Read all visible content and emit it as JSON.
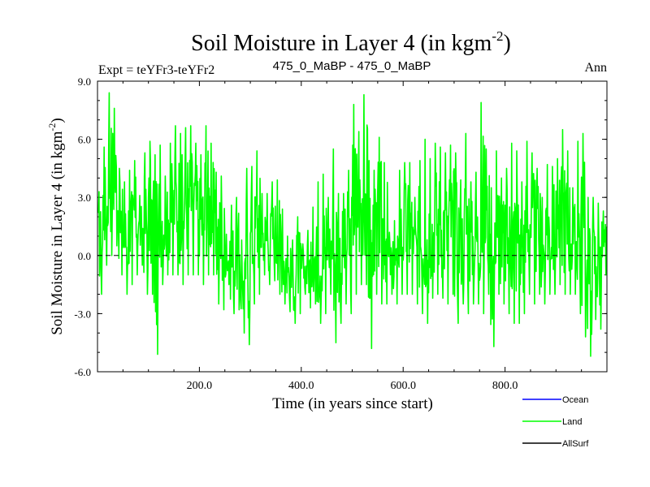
{
  "chart_data": {
    "type": "line",
    "title_main": "Soil Moisture in Layer 4 (in kgm",
    "title_sup": "-2",
    "title_close": ")",
    "subtitle_left": "Expt = teYFr3-teYFr2",
    "subtitle_center": "475_0_MaBP - 475_0_MaBP",
    "subtitle_right": "Ann",
    "xlabel": "Time (in years since start)",
    "ylabel_main": "Soil Moisture in Layer 4 (in kgm",
    "ylabel_sup": "-2",
    "ylabel_close": ")",
    "xlim": [
      0,
      1000
    ],
    "ylim": [
      -6.0,
      9.0
    ],
    "x_ticks": [
      200,
      400,
      600,
      800
    ],
    "x_tick_labels": [
      "200.0",
      "400.0",
      "600.0",
      "800.0"
    ],
    "y_ticks": [
      -6.0,
      -3.0,
      0.0,
      3.0,
      6.0,
      9.0
    ],
    "y_tick_labels": [
      "-6.0",
      "-3.0",
      "0.0",
      "3.0",
      "6.0",
      "9.0"
    ],
    "zero_line": 0.0,
    "legend": [
      {
        "name": "Ocean",
        "color": "#0000ff"
      },
      {
        "name": "Land",
        "color": "#00ff00"
      },
      {
        "name": "AllSurf",
        "color": "#000000"
      }
    ],
    "series": [
      {
        "name": "Land",
        "color": "#00ff00",
        "x_start": 1,
        "x_step": 10,
        "values_max": [
          3.3,
          5.6,
          8.4,
          7.6,
          4.5,
          3.8,
          4.4,
          4.9,
          3.1,
          5.3,
          5.9,
          5.2,
          5.7,
          4.1,
          5.8,
          6.7,
          6.3,
          6.6,
          6.7,
          5.8,
          5.2,
          6.7,
          5.8,
          4.3,
          4.1,
          1.1,
          2.6,
          3.0,
          0.8,
          4.5,
          4.6,
          5.4,
          3.2,
          3.2,
          3.8,
          3.9,
          2.4,
          1.0,
          0.8,
          2.0,
          0.6,
          1.3,
          2.5,
          3.8,
          4.2,
          3.0,
          5.5,
          3.2,
          3.2,
          4.4,
          7.8,
          6.4,
          8.3,
          4.9,
          4.4,
          6.1,
          4.8,
          1.2,
          1.8,
          4.4,
          4.8,
          4.8,
          3.0,
          4.9,
          6.0,
          5.0,
          5.8,
          5.6,
          5.3,
          5.7,
          5.3,
          3.9,
          6.3,
          3.8,
          4.3,
          7.9,
          5.5,
          3.5,
          5.4,
          4.0,
          4.5,
          5.8,
          5.4,
          3.8,
          5.9,
          5.3,
          4.5,
          3.0,
          4.7,
          4.6,
          5.0,
          6.5,
          5.4,
          3.5,
          5.9,
          6.3,
          3.0,
          3.0,
          2.7,
          2.3
        ],
        "values_min": [
          -2.0,
          -0.5,
          0.0,
          0.5,
          -1.0,
          -2.0,
          -1.5,
          -1.0,
          -0.5,
          -2.0,
          -2.0,
          -5.1,
          -1.5,
          -1.0,
          -1.0,
          -1.0,
          -1.5,
          -1.0,
          -1.0,
          -1.0,
          -1.5,
          -1.0,
          -1.0,
          -2.5,
          -2.8,
          -1.5,
          -3.0,
          -2.8,
          -4.0,
          -4.6,
          -2.5,
          -2.0,
          -1.0,
          -1.5,
          -1.3,
          -2.0,
          -2.5,
          -2.9,
          -3.5,
          -3.0,
          -2.0,
          -2.7,
          -2.5,
          -3.5,
          -3.0,
          -2.0,
          -4.5,
          -3.5,
          -2.5,
          -3.0,
          -2.0,
          -1.5,
          -1.5,
          -4.8,
          -2.0,
          -2.5,
          -2.5,
          -2.0,
          -2.5,
          -2.0,
          -2.0,
          -2.0,
          -2.5,
          -3.0,
          -3.5,
          -2.2,
          -2.0,
          -2.2,
          -2.5,
          -2.0,
          -3.5,
          -2.5,
          -3.0,
          -2.5,
          -2.5,
          -3.0,
          -2.0,
          -4.7,
          -2.0,
          -2.5,
          -3.0,
          -3.5,
          -3.5,
          -3.0,
          -2.0,
          -2.5,
          -2.0,
          -2.5,
          -2.0,
          -2.0,
          -1.5,
          -2.0,
          -2.0,
          -2.0,
          -3.0,
          -4.2,
          -5.2,
          -3.3,
          -3.8,
          -1.0
        ]
      }
    ]
  }
}
